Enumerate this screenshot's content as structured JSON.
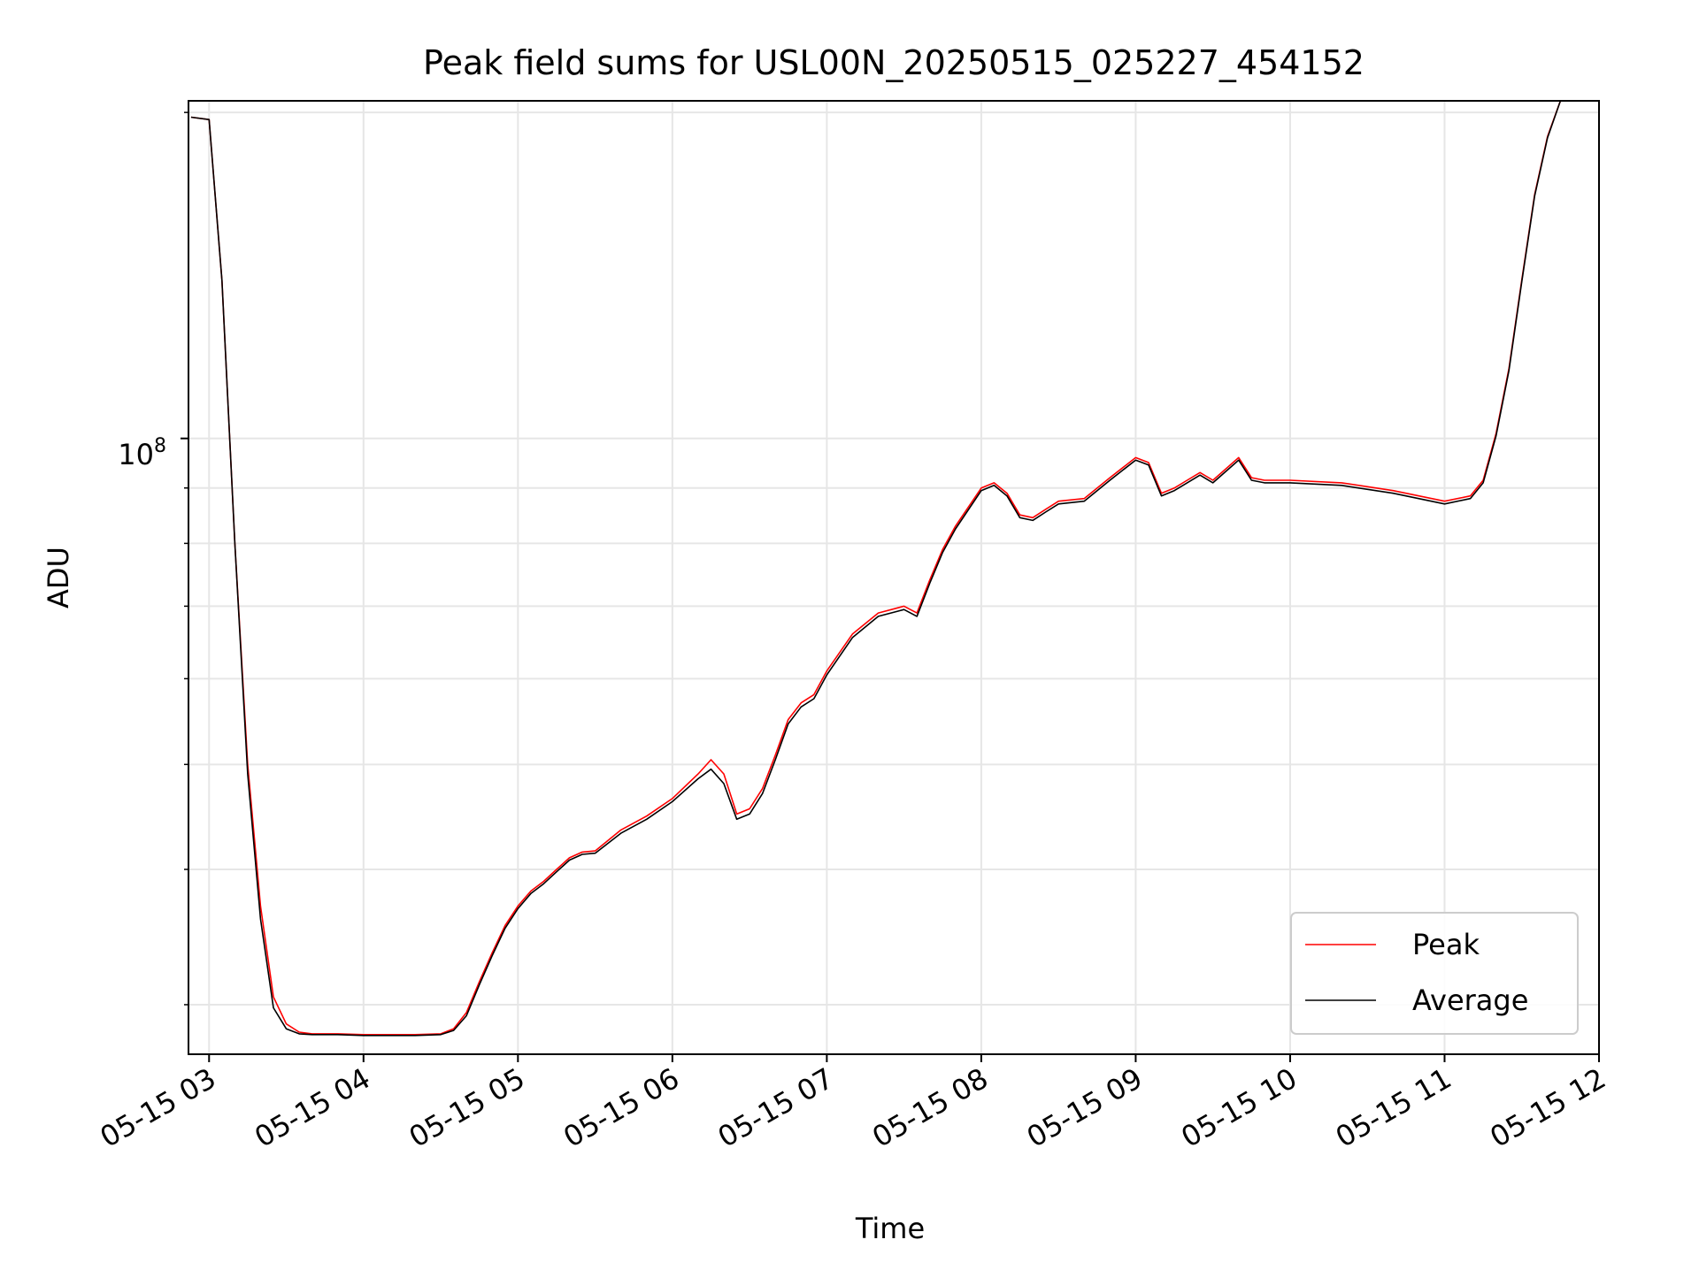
{
  "chart_data": {
    "type": "line",
    "title": "Peak field sums for USL00N_20250515_025227_454152",
    "xlabel": "Time",
    "ylabel": "ADU",
    "x_tick_labels": [
      "05-15 03",
      "05-15 04",
      "05-15 05",
      "05-15 06",
      "05-15 07",
      "05-15 08",
      "05-15 09",
      "05-15 10",
      "05-15 11",
      "05-15 12"
    ],
    "y_tick_label_base": "10",
    "y_tick_label_exponent": "8",
    "y_scale": "log",
    "x_range": [
      "2025-05-15 02:52",
      "2025-05-15 12:00"
    ],
    "ylim": [
      27000000,
      205000000
    ],
    "grid": true,
    "legend_position": "lower-right",
    "colors": {
      "peak": "#ff0000",
      "average": "#000000"
    },
    "x": [
      "02:53",
      "03:00",
      "03:05",
      "03:10",
      "03:15",
      "03:20",
      "03:25",
      "03:30",
      "03:35",
      "03:40",
      "03:45",
      "03:50",
      "04:00",
      "04:10",
      "04:20",
      "04:30",
      "04:35",
      "04:40",
      "04:45",
      "04:50",
      "04:55",
      "05:00",
      "05:05",
      "05:10",
      "05:15",
      "05:20",
      "05:25",
      "05:30",
      "05:40",
      "05:50",
      "06:00",
      "06:10",
      "06:15",
      "06:20",
      "06:25",
      "06:30",
      "06:35",
      "06:40",
      "06:45",
      "06:50",
      "06:55",
      "07:00",
      "07:10",
      "07:20",
      "07:30",
      "07:35",
      "07:40",
      "07:45",
      "07:50",
      "08:00",
      "08:05",
      "08:10",
      "08:15",
      "08:20",
      "08:25",
      "08:30",
      "08:40",
      "08:50",
      "09:00",
      "09:05",
      "09:10",
      "09:15",
      "09:20",
      "09:25",
      "09:30",
      "09:40",
      "09:45",
      "09:50",
      "09:55",
      "10:00",
      "10:20",
      "10:40",
      "11:00",
      "11:10",
      "11:15",
      "11:20",
      "11:25",
      "11:30",
      "11:35",
      "11:40",
      "11:45",
      "11:50"
    ],
    "series": [
      {
        "name": "Peak",
        "values": [
          198000000,
          197000000,
          140000000,
          80000000,
          50000000,
          37000000,
          30500000,
          28800000,
          28300000,
          28200000,
          28200000,
          28200000,
          28150000,
          28150000,
          28150000,
          28200000,
          28500000,
          29500000,
          31500000,
          33500000,
          35500000,
          37000000,
          38200000,
          39000000,
          40000000,
          41000000,
          41500000,
          41600000,
          43500000,
          44800000,
          46500000,
          49000000,
          50500000,
          49000000,
          45000000,
          45500000,
          47500000,
          51000000,
          55000000,
          57000000,
          58000000,
          61000000,
          66000000,
          69000000,
          70000000,
          69000000,
          74000000,
          79000000,
          83000000,
          90000000,
          91000000,
          89000000,
          85000000,
          84500000,
          86000000,
          87500000,
          88000000,
          92000000,
          96000000,
          95000000,
          89000000,
          90000000,
          91500000,
          93000000,
          91500000,
          96000000,
          92000000,
          91500000,
          91500000,
          91500000,
          91000000,
          89500000,
          87500000,
          88500000,
          91500000,
          101000000,
          116000000,
          140000000,
          168000000,
          190000000,
          205000000,
          205000000
        ]
      },
      {
        "name": "Average",
        "values": [
          198000000,
          197000000,
          140000000,
          80000000,
          49000000,
          36000000,
          29800000,
          28500000,
          28200000,
          28150000,
          28150000,
          28150000,
          28100000,
          28100000,
          28100000,
          28150000,
          28400000,
          29300000,
          31300000,
          33300000,
          35300000,
          36800000,
          38000000,
          38800000,
          39800000,
          40800000,
          41300000,
          41400000,
          43200000,
          44500000,
          46200000,
          48500000,
          49500000,
          48000000,
          44500000,
          45000000,
          47000000,
          50500000,
          54500000,
          56500000,
          57500000,
          60500000,
          65500000,
          68500000,
          69500000,
          68500000,
          73500000,
          78500000,
          82500000,
          89500000,
          90500000,
          88500000,
          84500000,
          84000000,
          85500000,
          87000000,
          87500000,
          91500000,
          95500000,
          94500000,
          88500000,
          89500000,
          91000000,
          92500000,
          91000000,
          95500000,
          91500000,
          91000000,
          91000000,
          91000000,
          90500000,
          89000000,
          87000000,
          88000000,
          91000000,
          100500000,
          115500000,
          139500000,
          167500000,
          189500000,
          205000000,
          205000000
        ]
      }
    ]
  }
}
